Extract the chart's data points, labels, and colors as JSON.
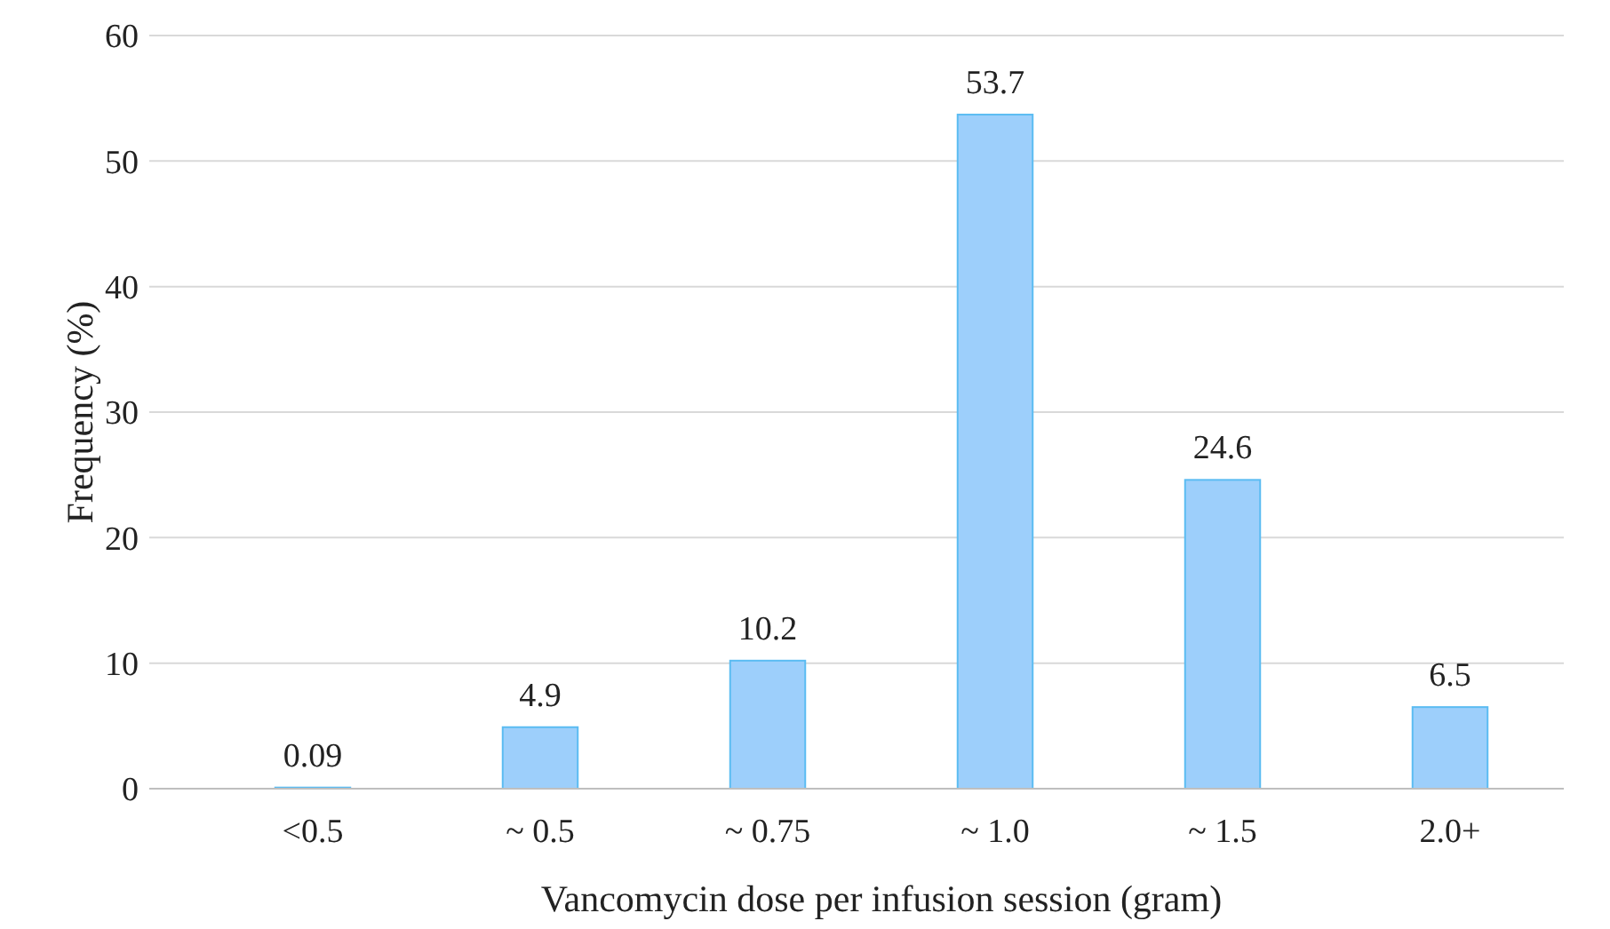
{
  "chart_data": {
    "type": "bar",
    "xlabel": "Vancomycin dose per infusion session (gram)",
    "ylabel": "Frequency (%)",
    "categories": [
      "<0.5",
      "~ 0.5",
      "~ 0.75",
      "~ 1.0",
      "~ 1.5",
      "2.0+"
    ],
    "values": [
      0.09,
      4.9,
      10.2,
      53.7,
      24.6,
      6.5
    ],
    "color": "#9dcffb",
    "ylim": [
      0,
      60
    ],
    "yticks": [
      0,
      10,
      20,
      30,
      40,
      50,
      60
    ],
    "grid": "y",
    "data_labels": true
  }
}
